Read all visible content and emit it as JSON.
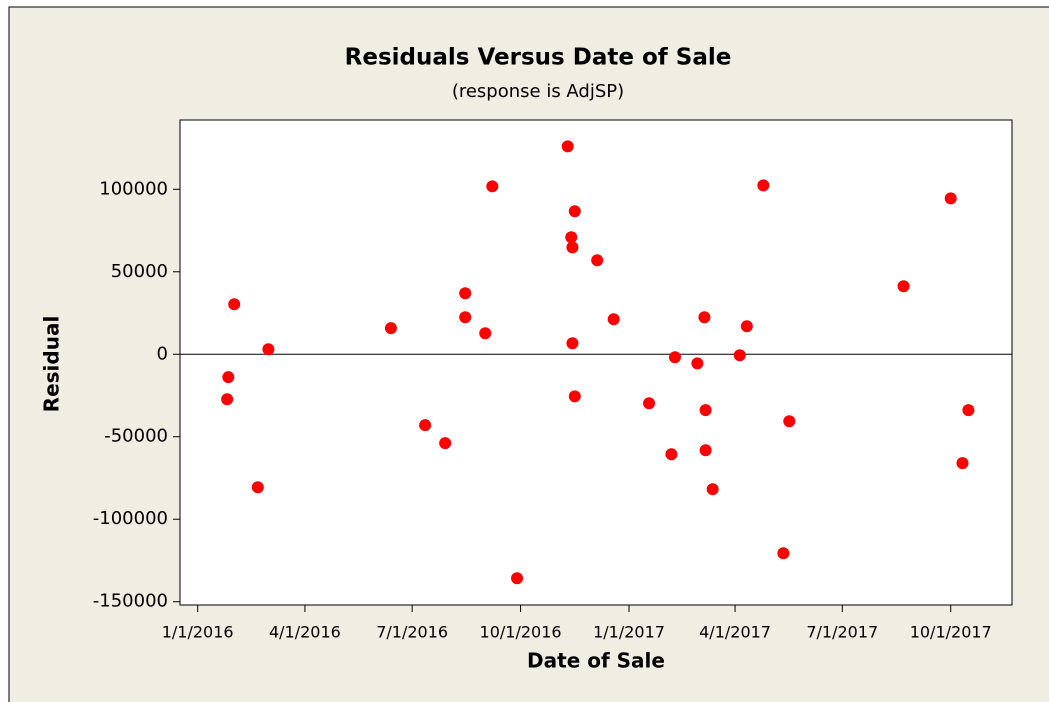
{
  "chart_data": {
    "type": "scatter",
    "title": "Residuals Versus Date of Sale",
    "subtitle": "(response is AdjSP)",
    "x_label": "Date of Sale",
    "y_label": "Residual",
    "color": "#ff0000",
    "reference_line": 0,
    "xlim": [
      "2015-12-17",
      "2017-11-22"
    ],
    "xticks": [
      {
        "value": "2016-01-01",
        "label": "1/1/2016"
      },
      {
        "value": "2016-04-01",
        "label": "4/1/2016"
      },
      {
        "value": "2016-07-01",
        "label": "7/1/2016"
      },
      {
        "value": "2016-10-01",
        "label": "10/1/2016"
      },
      {
        "value": "2017-01-01",
        "label": "1/1/2017"
      },
      {
        "value": "2017-04-01",
        "label": "4/1/2017"
      },
      {
        "value": "2017-07-01",
        "label": "7/1/2017"
      },
      {
        "value": "2017-10-01",
        "label": "10/1/2017"
      }
    ],
    "ylim": [
      -152000,
      142000
    ],
    "yticks": [
      -150000,
      -100000,
      -50000,
      0,
      50000,
      100000
    ],
    "x": [
      "2016-01-26",
      "2016-01-27",
      "2016-02-01",
      "2016-02-21",
      "2016-03-01",
      "2016-06-13",
      "2016-07-12",
      "2016-07-29",
      "2016-08-15",
      "2016-08-15",
      "2016-09-01",
      "2016-09-07",
      "2016-09-28",
      "2016-11-10",
      "2016-11-13",
      "2016-11-14",
      "2016-11-16",
      "2016-11-14",
      "2016-11-16",
      "2016-12-05",
      "2016-12-19",
      "2017-01-18",
      "2017-02-06",
      "2017-02-09",
      "2017-02-28",
      "2017-03-06",
      "2017-03-07",
      "2017-03-07",
      "2017-03-13",
      "2017-04-05",
      "2017-04-11",
      "2017-04-25",
      "2017-05-12",
      "2017-05-17",
      "2017-08-22",
      "2017-10-01",
      "2017-10-11",
      "2017-10-16"
    ],
    "values": [
      -27300,
      -13900,
      30300,
      -80600,
      3000,
      15800,
      -43000,
      -53900,
      37000,
      22400,
      12700,
      101800,
      -135800,
      126000,
      70900,
      64800,
      86700,
      6700,
      -25500,
      57000,
      21200,
      -29700,
      -60600,
      -1800,
      -5500,
      22400,
      -33900,
      -58200,
      -81800,
      -600,
      17000,
      102400,
      -120600,
      -40600,
      41200,
      94500,
      -66000,
      -33900
    ]
  }
}
